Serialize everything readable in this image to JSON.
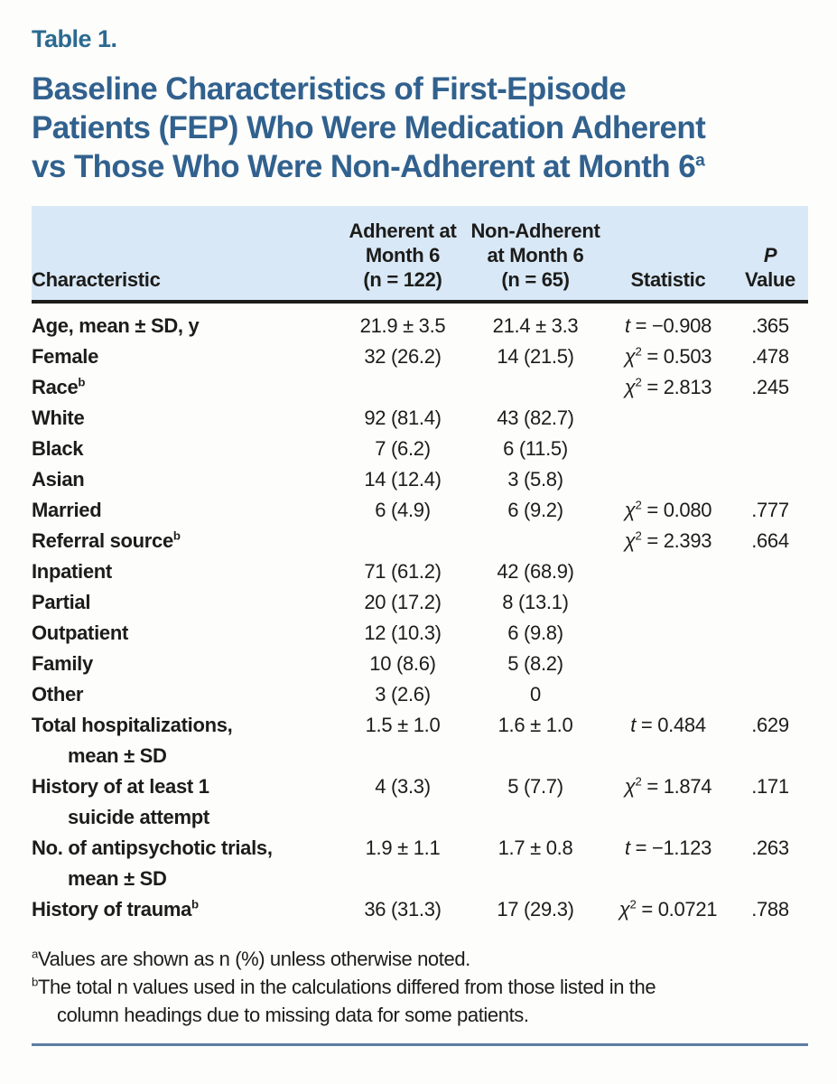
{
  "table_label": "Table 1.",
  "title": {
    "lines": [
      "Baseline Characteristics of First-Episode",
      "Patients (FEP) Who Were Medication Adherent",
      "vs Those Who Were Non-Adherent at Month 6"
    ],
    "marker": "a"
  },
  "table": {
    "header": {
      "characteristic": "Characteristic",
      "adherent": "Adherent at\nMonth 6\n(n = 122)",
      "nonadherent": "Non-Adherent\nat Month 6\n(n = 65)",
      "statistic": "Statistic",
      "p_line1": "P",
      "p_line2": "Value",
      "bg_color": "#d9e8f6"
    },
    "rows": [
      {
        "label": "Age, mean ± SD, y",
        "adherent": "21.9 ± 3.5",
        "nonadherent": "21.4 ± 3.3",
        "stat": {
          "sym": "t",
          "sup": "",
          "rest": " = −0.908"
        },
        "p": ".365"
      },
      {
        "label": "Female",
        "adherent": "32 (26.2)",
        "nonadherent": "14 (21.5)",
        "stat": {
          "sym": "χ",
          "sup": "2",
          "rest": " = 0.503"
        },
        "p": ".478"
      },
      {
        "label": "Race",
        "marker": "b",
        "adherent": "",
        "nonadherent": "",
        "stat": {
          "sym": "χ",
          "sup": "2",
          "rest": " = 2.813"
        },
        "p": ".245"
      },
      {
        "label": "White",
        "adherent": "92 (81.4)",
        "nonadherent": "43 (82.7)",
        "stat": null,
        "p": ""
      },
      {
        "label": "Black",
        "adherent": "7 (6.2)",
        "nonadherent": "6 (11.5)",
        "stat": null,
        "p": ""
      },
      {
        "label": "Asian",
        "adherent": "14 (12.4)",
        "nonadherent": "3 (5.8)",
        "stat": null,
        "p": ""
      },
      {
        "label": "Married",
        "adherent": "6 (4.9)",
        "nonadherent": "6 (9.2)",
        "stat": {
          "sym": "χ",
          "sup": "2",
          "rest": " = 0.080"
        },
        "p": ".777"
      },
      {
        "label": "Referral source",
        "marker": "b",
        "adherent": "",
        "nonadherent": "",
        "stat": {
          "sym": "χ",
          "sup": "2",
          "rest": " = 2.393"
        },
        "p": ".664"
      },
      {
        "label": "Inpatient",
        "adherent": "71 (61.2)",
        "nonadherent": "42 (68.9)",
        "stat": null,
        "p": ""
      },
      {
        "label": "Partial",
        "adherent": "20 (17.2)",
        "nonadherent": "8 (13.1)",
        "stat": null,
        "p": ""
      },
      {
        "label": "Outpatient",
        "adherent": "12 (10.3)",
        "nonadherent": "6 (9.8)",
        "stat": null,
        "p": ""
      },
      {
        "label": "Family",
        "adherent": "10 (8.6)",
        "nonadherent": "5 (8.2)",
        "stat": null,
        "p": ""
      },
      {
        "label": "Other",
        "adherent": "3 (2.6)",
        "nonadherent": "0",
        "stat": null,
        "p": ""
      },
      {
        "label": "Total hospitalizations,",
        "label2": "mean ± SD",
        "adherent": "1.5 ± 1.0",
        "nonadherent": "1.6 ± 1.0",
        "stat": {
          "sym": "t",
          "sup": "",
          "rest": " = 0.484"
        },
        "p": ".629"
      },
      {
        "label": "History of at least 1",
        "label2": "suicide attempt",
        "adherent": "4 (3.3)",
        "nonadherent": "5 (7.7)",
        "stat": {
          "sym": "χ",
          "sup": "2",
          "rest": " = 1.874"
        },
        "p": ".171"
      },
      {
        "label": "No. of antipsychotic trials,",
        "label2": "mean ± SD",
        "adherent": "1.9 ± 1.1",
        "nonadherent": "1.7 ± 0.8",
        "stat": {
          "sym": "t",
          "sup": "",
          "rest": " = −1.123"
        },
        "p": ".263"
      },
      {
        "label": "History of trauma",
        "marker": "b",
        "adherent": "36 (31.3)",
        "nonadherent": "17 (29.3)",
        "stat": {
          "sym": "χ",
          "sup": "2",
          "rest": " = 0.0721"
        },
        "p": ".788"
      }
    ]
  },
  "footnotes": [
    {
      "marker": "a",
      "lines": [
        "Values are shown as n (%) unless otherwise noted."
      ]
    },
    {
      "marker": "b",
      "lines": [
        "The total n values used in the calculations differed from those listed in the",
        "column headings due to missing data for some patients."
      ]
    }
  ],
  "colors": {
    "title": "#31618e",
    "table_label": "#2b6a92",
    "header_bg": "#d9e8f6",
    "bottom_rule": "#5d7da5",
    "body_text": "#1c1c1a"
  }
}
